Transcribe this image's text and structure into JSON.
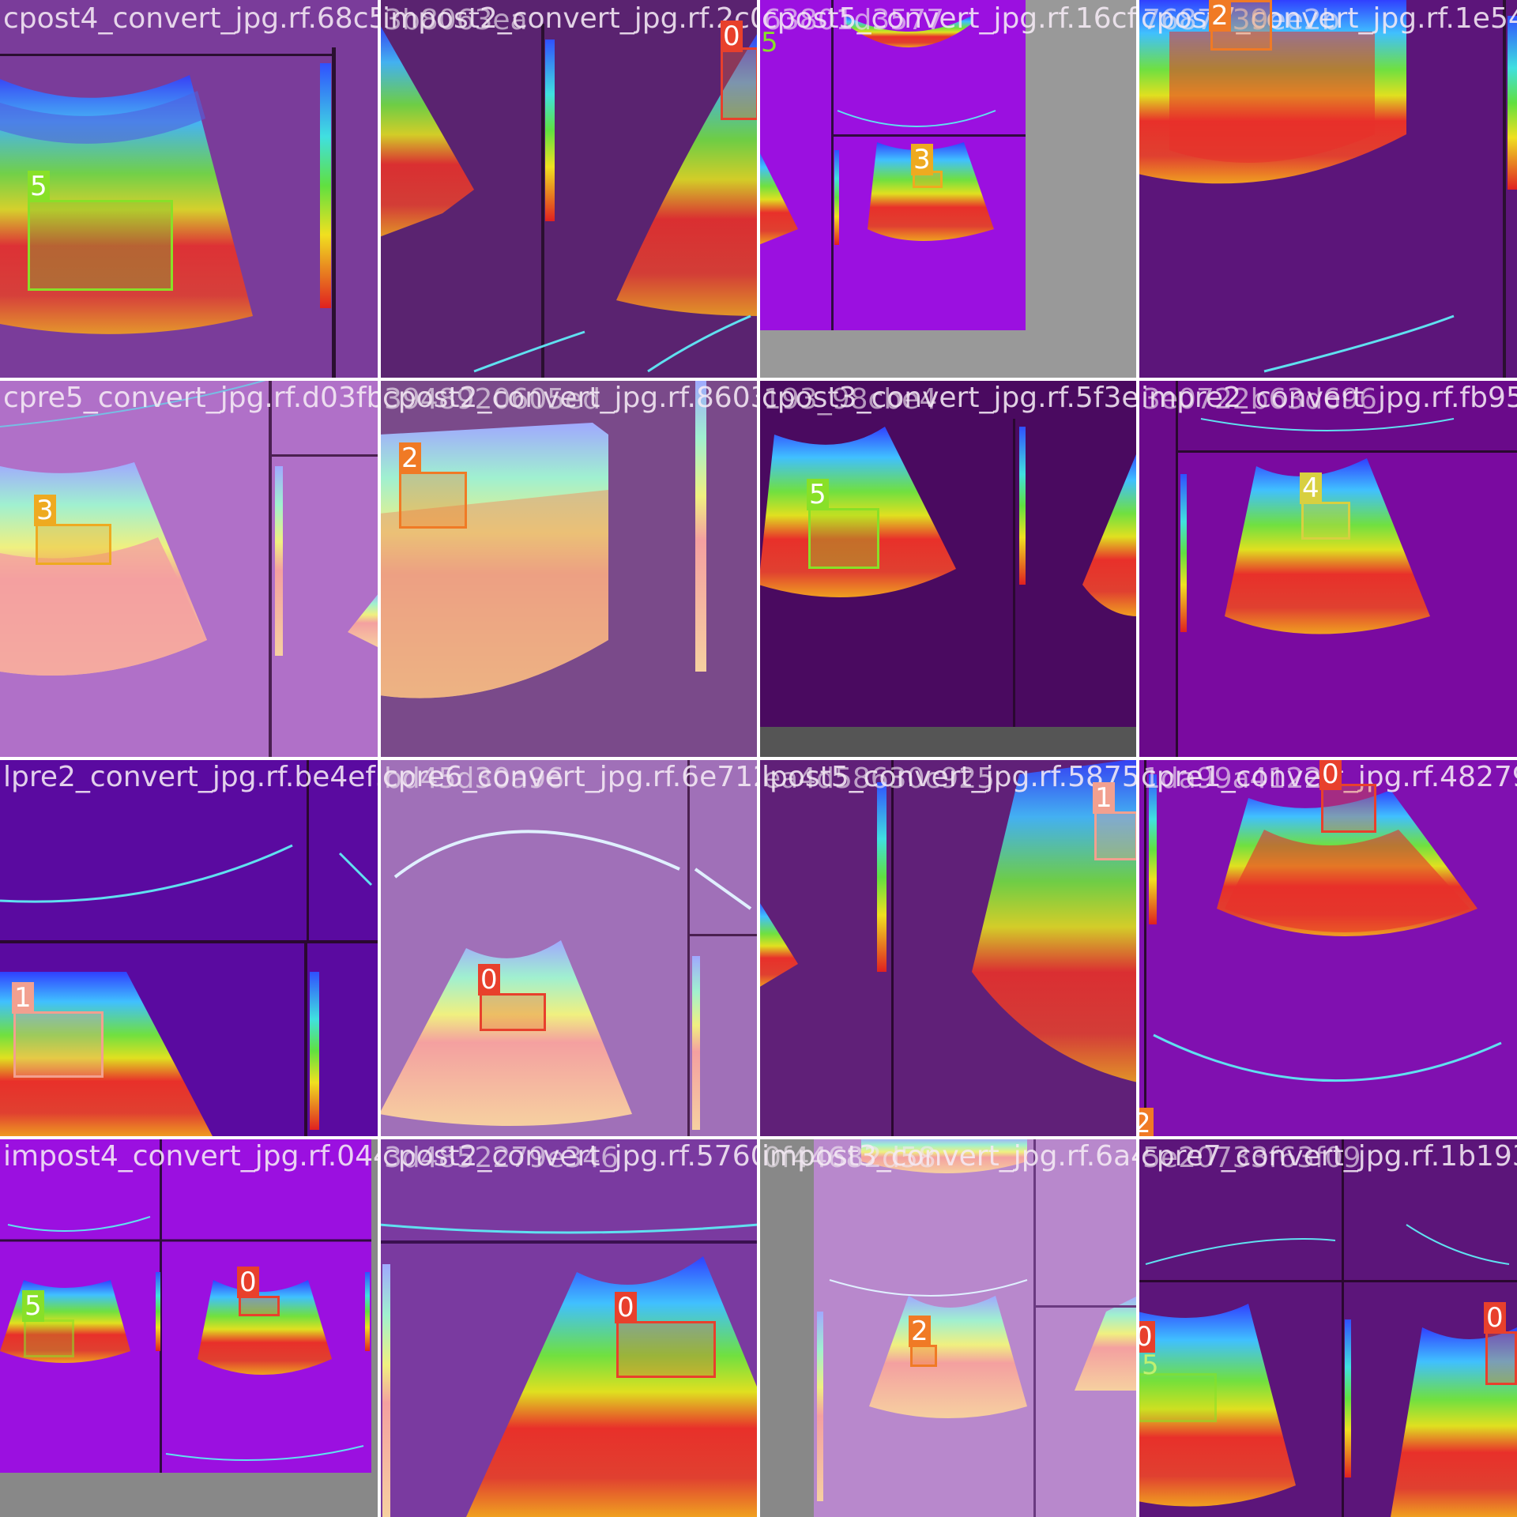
{
  "colors": {
    "class_0": "#e8402c",
    "class_1": "#f2a090",
    "class_2": "#f07a25",
    "class_3": "#eeaa20",
    "class_4": "#d8d040",
    "class_5": "#88e028"
  },
  "tiles": [
    {
      "title": "cpost4_convert_jpg.rf.68c52",
      "title_overlap": "1691af2b8b63ea",
      "labels": [
        "5"
      ]
    },
    {
      "title": "impost2_convert_jpg.rf.2c0c5",
      "title_overlap": "3b8063ea",
      "labels": [
        "0"
      ]
    },
    {
      "title": "cpost5_convert_jpg.rf.16cf2e",
      "title_overlap": "63801d3577",
      "labels": [
        "5",
        "3"
      ]
    },
    {
      "title": "cpost7_convert_jpg.rf.1e5419",
      "title_overlap": "7687a39ee2b",
      "labels": [
        "2"
      ]
    },
    {
      "title": "cpre5_convert_jpg.rf.d03fbfe",
      "title_overlap": "",
      "labels": [
        "3"
      ]
    },
    {
      "title": "cpost2_convert_jpg.rf.86039",
      "title_overlap": "3948920605ed",
      "labels": [
        "2"
      ]
    },
    {
      "title": "cpost3_convert_jpg.rf.5f3e8",
      "title_overlap": "193_98cbe4",
      "labels": [
        "5"
      ]
    },
    {
      "title": "impre2_convert_jpg.rf.fb951c",
      "title_overlap": "3e0722b63d696",
      "labels": [
        "4"
      ]
    },
    {
      "title": "lpre2_convert_jpg.rf.be4ef3c",
      "title_overlap": "",
      "labels": [
        "1"
      ]
    },
    {
      "title": "cpre6_convert_jpg.rf.6e7125",
      "title_overlap": "bd45d30a96",
      "labels": [
        "0"
      ]
    },
    {
      "title": "lpost5_convert_jpg.rf.58751",
      "title_overlap": "ea4d58630c925",
      "labels": [
        "1"
      ]
    },
    {
      "title": "cpre1_convert_jpg.rf.482795",
      "title_overlap": "1da99a41222",
      "labels": [
        "0",
        "2"
      ]
    },
    {
      "title": "impost4_convert_jpg.rf.0448",
      "title_overlap": "",
      "labels": [
        "5",
        "0"
      ]
    },
    {
      "title": "cpost2_convert_jpg.rf.5760f0",
      "title_overlap": "3d4852279e346",
      "labels": [
        "0"
      ]
    },
    {
      "title": "impost3_convert_jpg.rf.6a4",
      "title_overlap": "0f44682d58",
      "labels": [
        "2"
      ]
    },
    {
      "title": "cpre7_convert_jpg.rf.1b1936",
      "title_overlap": "5e20733f63f09",
      "labels": [
        "0",
        "5",
        "0"
      ]
    }
  ]
}
